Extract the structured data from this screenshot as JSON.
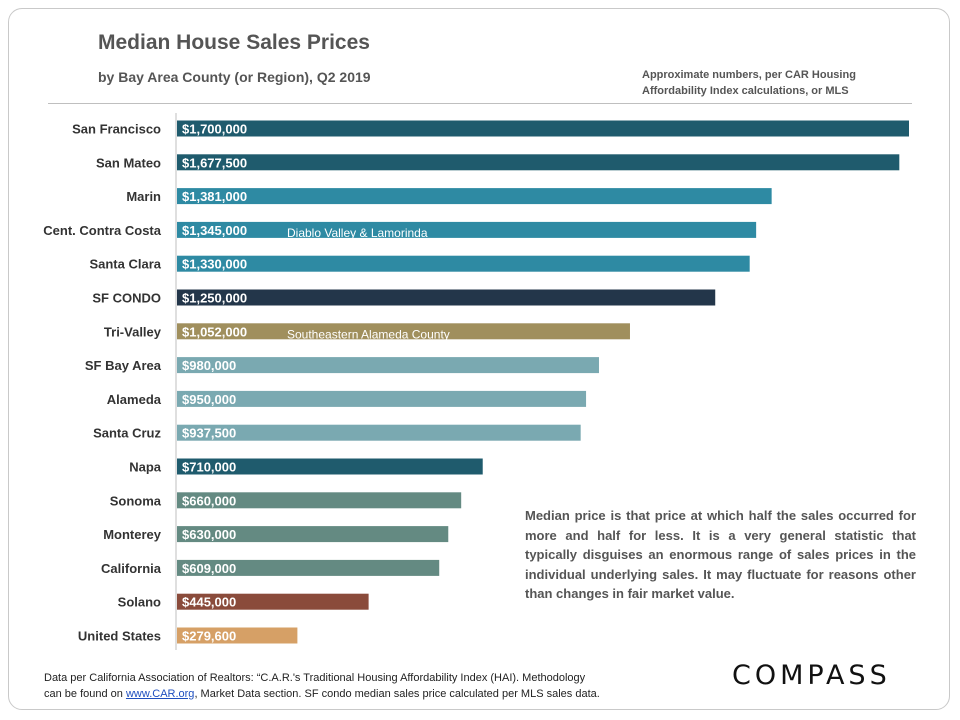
{
  "header": {
    "title": "Median House Sales Prices",
    "subtitle": "by Bay Area County (or Region), Q2 2019",
    "note_line1": "Approximate numbers, per CAR Housing",
    "note_line2": "Affordability Index calculations,  or MLS"
  },
  "chart_data": {
    "type": "bar",
    "orientation": "horizontal",
    "title": "Median House Sales Prices",
    "subtitle": "by Bay Area County (or Region), Q2 2019",
    "xlabel": "",
    "ylabel": "",
    "xlim": [
      0,
      1700000
    ],
    "grid": false,
    "legend": "none",
    "categories": [
      "San Francisco",
      "San Mateo",
      "Marin",
      "Cent. Contra Costa",
      "Santa Clara",
      "SF CONDO",
      "Tri-Valley",
      "SF Bay Area",
      "Alameda",
      "Santa Cruz",
      "Napa",
      "Sonoma",
      "Monterey",
      "California",
      "Solano",
      "United States"
    ],
    "values": [
      1700000,
      1677500,
      1381000,
      1345000,
      1330000,
      1250000,
      1052000,
      980000,
      950000,
      937500,
      710000,
      660000,
      630000,
      609000,
      445000,
      279600
    ],
    "labels": [
      "$1,700,000",
      "$1,677,500",
      "$1,381,000",
      "$1,345,000",
      "$1,330,000",
      "$1,250,000",
      "$1,052,000",
      "$980,000",
      "$950,000",
      "$937,500",
      "$710,000",
      "$660,000",
      "$630,000",
      "$609,000",
      "$445,000",
      "$279,600"
    ],
    "colors": [
      "#1f5b6d",
      "#1f5b6d",
      "#2e8aa3",
      "#2e8aa3",
      "#2e8aa3",
      "#23364a",
      "#a08f5d",
      "#7aa9b1",
      "#7aa9b1",
      "#7aa9b1",
      "#1f5b6d",
      "#648a82",
      "#648a82",
      "#648a82",
      "#8a4b3b",
      "#d6a066"
    ],
    "annotations": [
      {
        "category": "Cent. Contra Costa",
        "text": "Diablo Valley & Lamorinda"
      },
      {
        "category": "Tri-Valley",
        "text": "Southeastern Alameda County"
      }
    ]
  },
  "explanation": "Median price is that price at which half the sales occurred for more and half for less. It is a very general statistic that typically disguises an enormous range of sales prices in the individual underlying sales. It may fluctuate for reasons other than changes in fair market value.",
  "footer": {
    "line1": "Data per California Association of Realtors: “C.A.R.'s Traditional Housing Affordability Index (HAI). Methodology",
    "line2_prefix": "can be found on ",
    "link_text": "www.CAR.org",
    "line2_suffix": ",  Market Data section. SF condo median sales price calculated per MLS sales data."
  },
  "logo": {
    "text": "COMPASS"
  }
}
